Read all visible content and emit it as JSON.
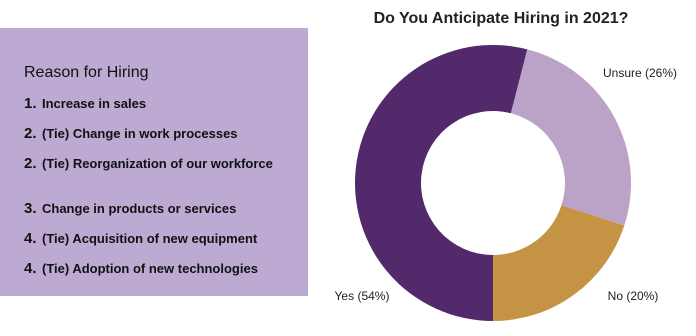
{
  "panel": {
    "heading": "Reason for Hiring",
    "items": [
      {
        "rank": "1.",
        "text": "Increase in sales"
      },
      {
        "rank": "2.",
        "text": "(Tie) Change in work processes"
      },
      {
        "rank": "2.",
        "text": "(Tie) Reorganization of our workforce"
      },
      {
        "rank": "3.",
        "text": "Change in products or services"
      },
      {
        "rank": "4.",
        "text": "(Tie) Acquisition of new equipment"
      },
      {
        "rank": "4.",
        "text": "(Tie) Adoption of new technologies"
      }
    ]
  },
  "chart_data": {
    "type": "donut",
    "title": "Do You Anticipate Hiring in 2021?",
    "values": [
      54,
      26,
      20
    ],
    "value_labels": [
      "Yes (54%)",
      "Unsure (26%)",
      "No (20%)"
    ],
    "colors": [
      "#52296b",
      "#bba3c7",
      "#c49444"
    ]
  }
}
